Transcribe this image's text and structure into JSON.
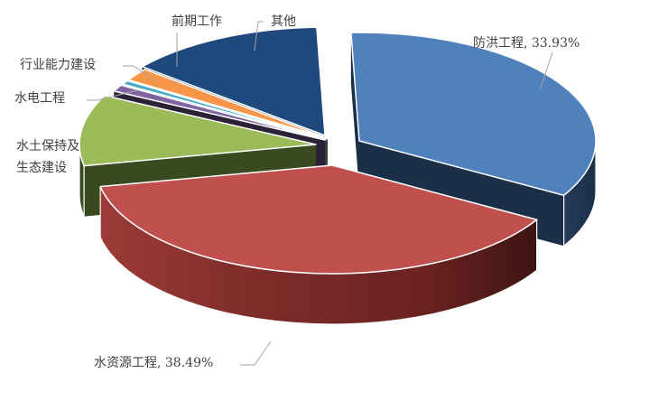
{
  "chart_data": {
    "type": "pie",
    "title": "",
    "legend": "none",
    "slices": [
      {
        "name": "防洪工程",
        "value": 33.93,
        "value_label": "33.93%",
        "color": "#4f81bd"
      },
      {
        "name": "水资源工程",
        "value": 38.49,
        "value_label": "38.49%",
        "color": "#c0504d"
      },
      {
        "name": "水土保持及生态建设",
        "value": 10.6,
        "color": "#9bbb59"
      },
      {
        "name": "水电工程",
        "value": 1.0,
        "color": "#8064a2"
      },
      {
        "name": "行业能力建设",
        "value": 0.6,
        "color": "#4bacc6"
      },
      {
        "name": "前期工作",
        "value": 1.9,
        "color": "#f79646"
      },
      {
        "name": "其他",
        "value": 13.5,
        "color": "#1f497d"
      }
    ]
  }
}
